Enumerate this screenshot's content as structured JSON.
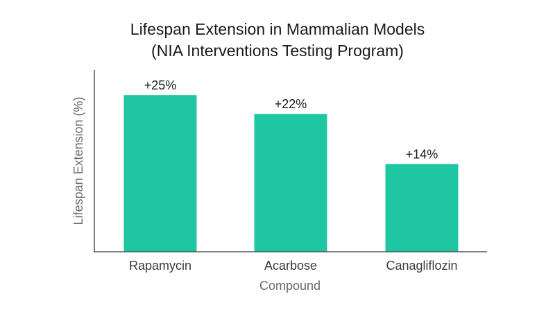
{
  "chart_data": {
    "type": "bar",
    "title": "Lifespan Extension in Mammalian Models",
    "subtitle": "(NIA Interventions Testing Program)",
    "xlabel": "Compound",
    "ylabel": "Lifespan Extension (%)",
    "categories": [
      "Rapamycin",
      "Acarbose",
      "Canagliflozin"
    ],
    "values": [
      25,
      22,
      14
    ],
    "data_labels": [
      "+25%",
      "+22%",
      "+14%"
    ],
    "ylim": [
      0,
      29
    ],
    "grid": false,
    "bar_color": "#1ec7a2"
  }
}
